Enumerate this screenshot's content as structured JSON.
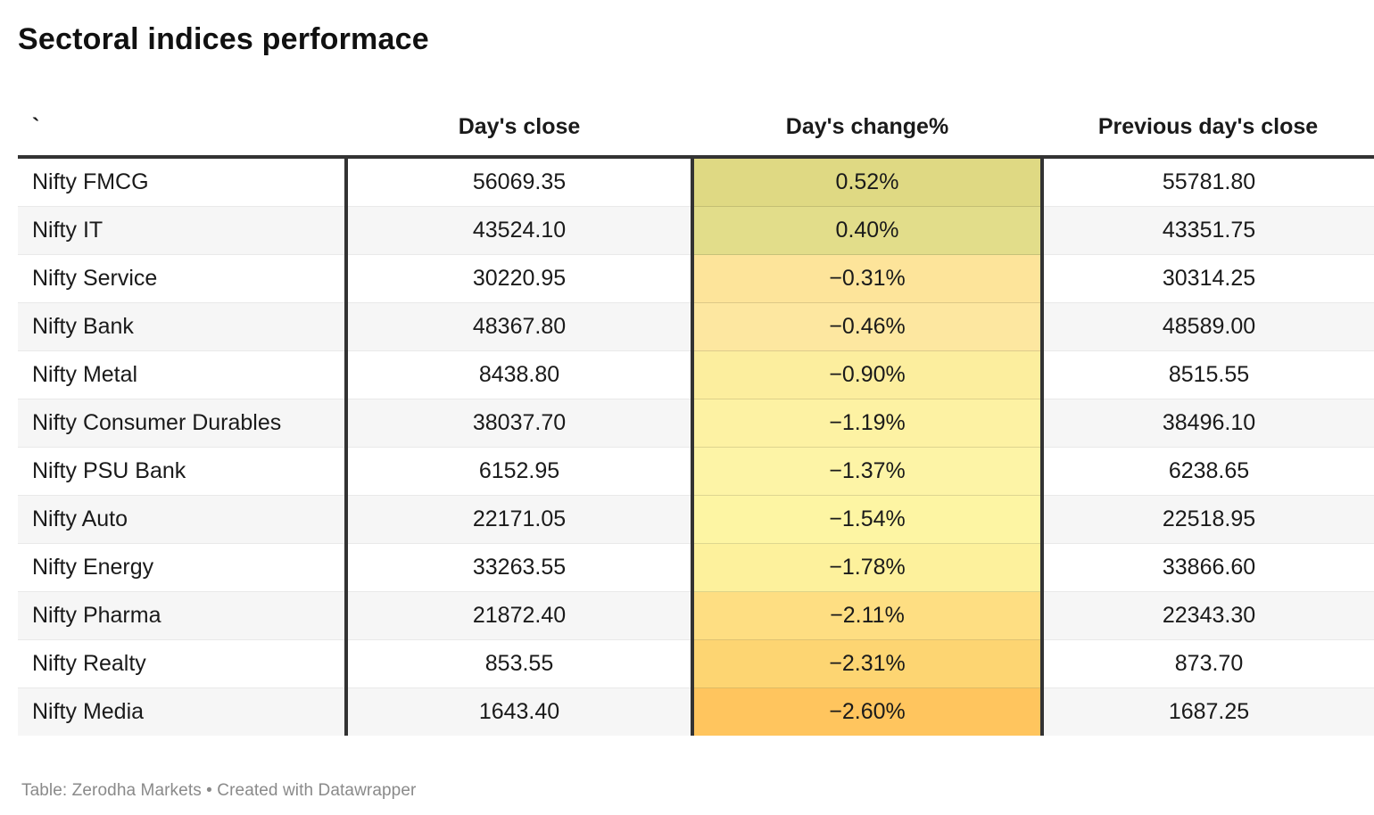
{
  "title": "Sectoral indices performace",
  "footer": "Table: Zerodha Markets • Created with Datawrapper",
  "colors": {
    "rule_dark": "#333333",
    "row_stripe": "#f6f6f6",
    "row_separator": "#e9e9e9",
    "footer_text": "#8a8a8a",
    "positive_extreme": "#dfd983",
    "negative_extreme": "#ffc55e"
  },
  "table": {
    "columns": [
      {
        "label": "`"
      },
      {
        "label": "Day's close"
      },
      {
        "label": "Day's change%"
      },
      {
        "label": "Previous day's close"
      }
    ],
    "rows": [
      {
        "name": "Nifty FMCG",
        "close": "56069.35",
        "change": "0.52%",
        "prev": "55781.80",
        "change_bg": "#dfd983"
      },
      {
        "name": "Nifty IT",
        "close": "43524.10",
        "change": "0.40%",
        "prev": "43351.75",
        "change_bg": "#e2dd8a"
      },
      {
        "name": "Nifty Service",
        "close": "30220.95",
        "change": "−0.31%",
        "prev": "30314.25",
        "change_bg": "#fde49a"
      },
      {
        "name": "Nifty Bank",
        "close": "48367.80",
        "change": "−0.46%",
        "prev": "48589.00",
        "change_bg": "#fde7a0"
      },
      {
        "name": "Nifty Metal",
        "close": "8438.80",
        "change": "−0.90%",
        "prev": "8515.55",
        "change_bg": "#fcee9e"
      },
      {
        "name": "Nifty Consumer Durables",
        "close": "38037.70",
        "change": "−1.19%",
        "prev": "38496.10",
        "change_bg": "#fdf2a3"
      },
      {
        "name": "Nifty PSU Bank",
        "close": "6152.95",
        "change": "−1.37%",
        "prev": "6238.65",
        "change_bg": "#fdf4a6"
      },
      {
        "name": "Nifty Auto",
        "close": "22171.05",
        "change": "−1.54%",
        "prev": "22518.95",
        "change_bg": "#fdf5a3"
      },
      {
        "name": "Nifty Energy",
        "close": "33263.55",
        "change": "−1.78%",
        "prev": "33866.60",
        "change_bg": "#fdf19c"
      },
      {
        "name": "Nifty Pharma",
        "close": "21872.40",
        "change": "−2.11%",
        "prev": "22343.30",
        "change_bg": "#fede82"
      },
      {
        "name": "Nifty Realty",
        "close": "853.55",
        "change": "−2.31%",
        "prev": "873.70",
        "change_bg": "#fdd572"
      },
      {
        "name": "Nifty Media",
        "close": "1643.40",
        "change": "−2.60%",
        "prev": "1687.25",
        "change_bg": "#ffc55e"
      }
    ]
  },
  "chart_data": {
    "type": "table",
    "title": "Sectoral indices performace",
    "columns": [
      "`",
      "Day's close",
      "Day's change%",
      "Previous day's close"
    ],
    "rows": [
      [
        "Nifty FMCG",
        56069.35,
        0.52,
        55781.8
      ],
      [
        "Nifty IT",
        43524.1,
        0.4,
        43351.75
      ],
      [
        "Nifty Service",
        30220.95,
        -0.31,
        30314.25
      ],
      [
        "Nifty Bank",
        48367.8,
        -0.46,
        48589.0
      ],
      [
        "Nifty Metal",
        8438.8,
        -0.9,
        8515.55
      ],
      [
        "Nifty Consumer Durables",
        38037.7,
        -1.19,
        38496.1
      ],
      [
        "Nifty PSU Bank",
        6152.95,
        -1.37,
        6238.65
      ],
      [
        "Nifty Auto",
        22171.05,
        -1.54,
        22518.95
      ],
      [
        "Nifty Energy",
        33263.55,
        -1.78,
        33866.6
      ],
      [
        "Nifty Pharma",
        21872.4,
        -2.11,
        22343.3
      ],
      [
        "Nifty Realty",
        853.55,
        -2.31,
        873.7
      ],
      [
        "Nifty Media",
        1643.4,
        -2.6,
        1687.25
      ]
    ],
    "heatmap_column": "Day's change%",
    "heatmap_scale": "diverging green-yellow-orange",
    "source": "Table: Zerodha Markets • Created with Datawrapper"
  }
}
